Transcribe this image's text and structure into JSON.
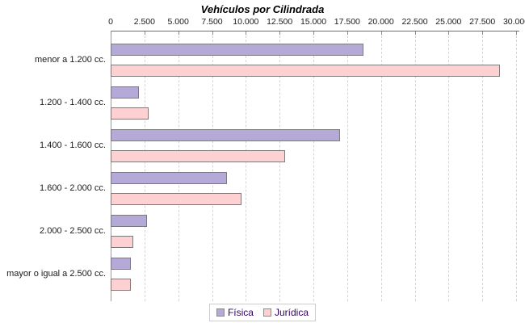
{
  "title": "Vehículos por Cilindrada",
  "colors": {
    "fisica_fill": "#b5aad7",
    "juridica_fill": "#fdd1d1",
    "bar_border": "#7b7b7b",
    "legend_text": "#330066",
    "axis_line": "#6e6e6e",
    "gridline": "#d4d4d4"
  },
  "chart_data": {
    "type": "bar",
    "orientation": "horizontal",
    "title": "Vehículos por Cilindrada",
    "xlabel": "",
    "ylabel": "",
    "xlim": [
      0,
      30000
    ],
    "grid": "vertical-dashed",
    "legend_position": "bottom",
    "x_tick_labels": [
      "0",
      "2.500",
      "5.000",
      "7.500",
      "10.000",
      "12.500",
      "15.000",
      "17.500",
      "20.000",
      "22.500",
      "25.000",
      "27.500",
      "30.000"
    ],
    "x_tick_values": [
      0,
      2500,
      5000,
      7500,
      10000,
      12500,
      15000,
      17500,
      20000,
      22500,
      25000,
      27500,
      30000
    ],
    "categories": [
      "menor a 1.200 cc.",
      "1.200 - 1.400 cc.",
      "1.400 - 1.600 cc.",
      "1.600 - 2.000 cc.",
      "2.000 - 2.500 cc.",
      "mayor o igual a 2.500 cc."
    ],
    "series": [
      {
        "name": "Física",
        "key": "fisica",
        "color": "#b5aad7",
        "values": [
          18700,
          2100,
          17000,
          8600,
          2700,
          1500
        ]
      },
      {
        "name": "Jurídica",
        "key": "juridica",
        "color": "#fdd1d1",
        "values": [
          28800,
          2800,
          12900,
          9700,
          1700,
          1500
        ]
      }
    ]
  }
}
